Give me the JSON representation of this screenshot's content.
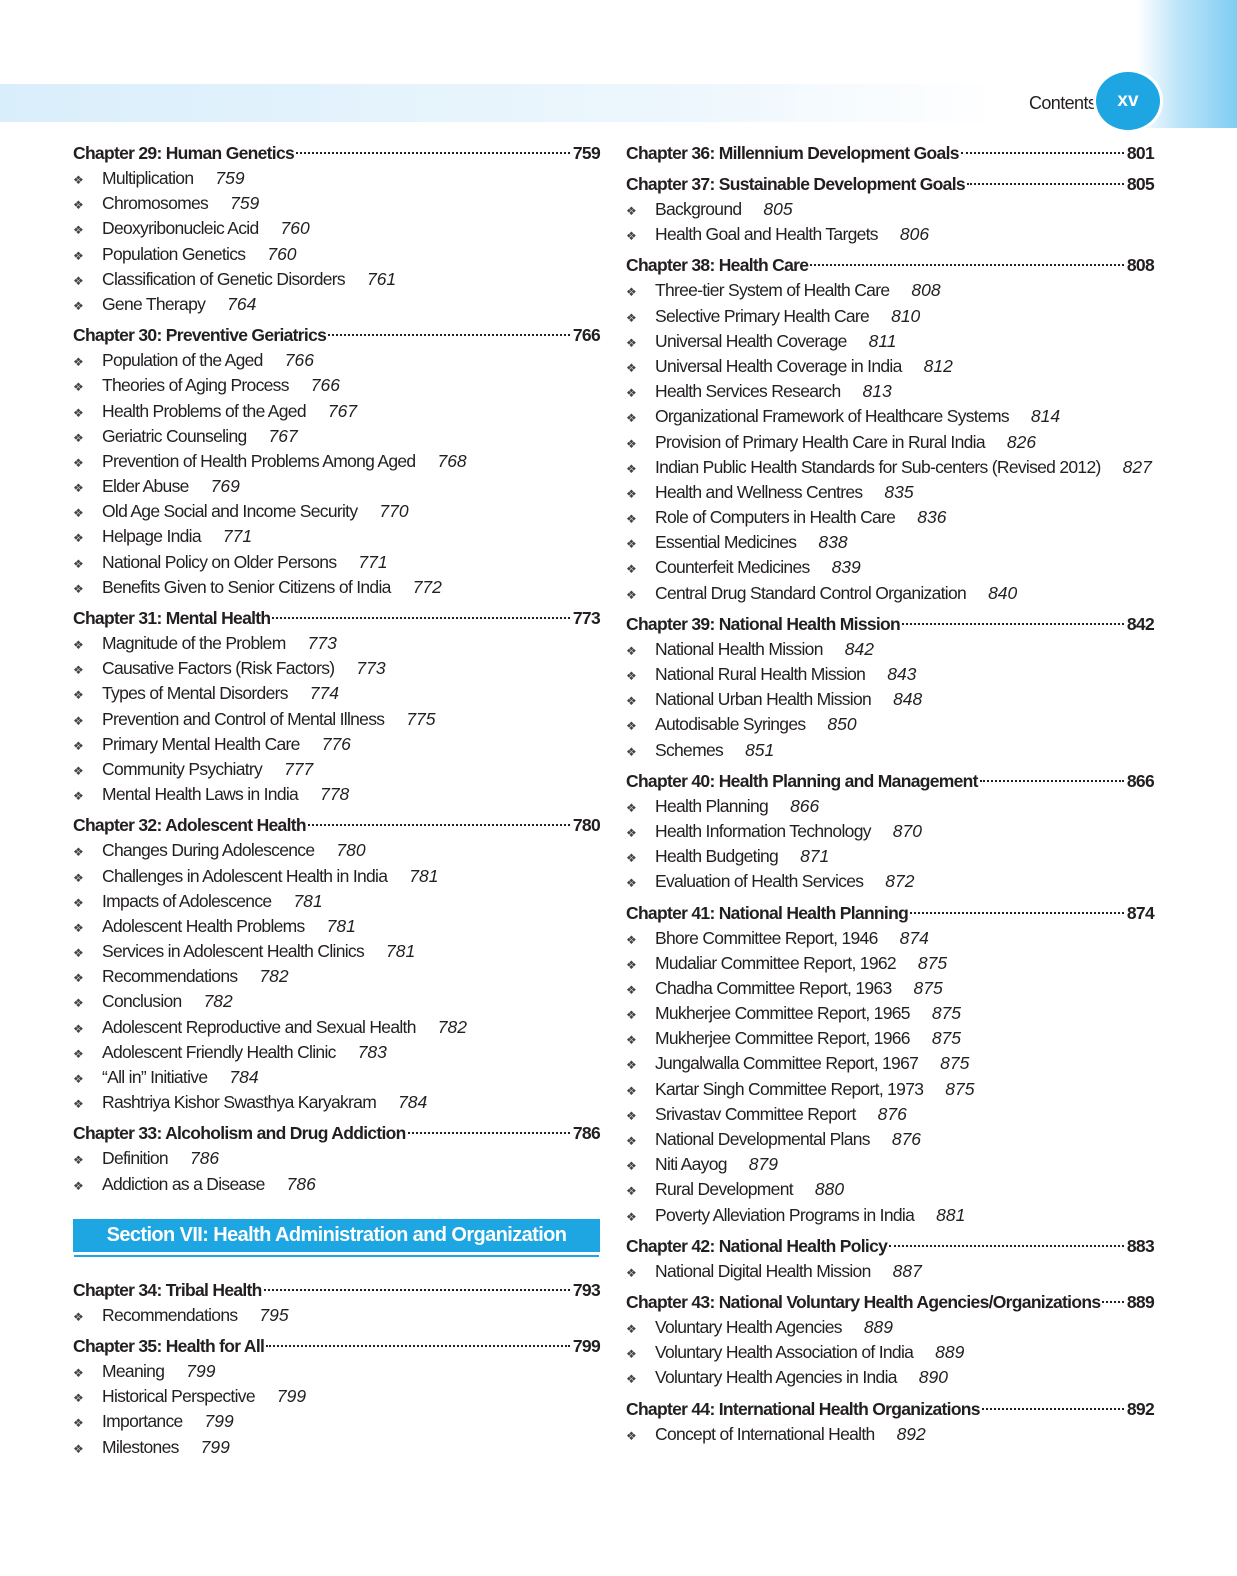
{
  "header": {
    "running_title": "Contents",
    "folio": "xv"
  },
  "accent_color": "#1da6e2",
  "columns": [
    [
      {
        "type": "chapter",
        "title": "Chapter 29: Human Genetics",
        "page": "759",
        "items": [
          {
            "label": "Multiplication",
            "page": "759"
          },
          {
            "label": "Chromosomes",
            "page": "759"
          },
          {
            "label": "Deoxyribonucleic Acid",
            "page": "760"
          },
          {
            "label": "Population Genetics",
            "page": "760"
          },
          {
            "label": "Classification of Genetic Disorders",
            "page": "761"
          },
          {
            "label": "Gene Therapy",
            "page": "764"
          }
        ]
      },
      {
        "type": "chapter",
        "title": "Chapter 30: Preventive Geriatrics",
        "page": "766",
        "items": [
          {
            "label": "Population of the Aged",
            "page": "766"
          },
          {
            "label": "Theories of Aging Process",
            "page": "766"
          },
          {
            "label": "Health Problems of the Aged",
            "page": "767"
          },
          {
            "label": "Geriatric Counseling",
            "page": "767"
          },
          {
            "label": "Prevention of Health Problems Among Aged",
            "page": "768"
          },
          {
            "label": "Elder Abuse",
            "page": "769"
          },
          {
            "label": "Old Age Social and Income Security",
            "page": "770"
          },
          {
            "label": "Helpage India",
            "page": "771"
          },
          {
            "label": "National Policy on Older Persons",
            "page": "771"
          },
          {
            "label": "Benefits Given to Senior Citizens of India",
            "page": "772"
          }
        ]
      },
      {
        "type": "chapter",
        "title": "Chapter 31: Mental Health",
        "page": "773",
        "items": [
          {
            "label": "Magnitude of the Problem",
            "page": "773"
          },
          {
            "label": "Causative Factors (Risk Factors)",
            "page": "773"
          },
          {
            "label": "Types of Mental Disorders",
            "page": "774"
          },
          {
            "label": "Prevention and Control of Mental Illness",
            "page": "775"
          },
          {
            "label": "Primary Mental Health Care",
            "page": "776"
          },
          {
            "label": "Community Psychiatry",
            "page": "777"
          },
          {
            "label": "Mental Health Laws in India",
            "page": "778"
          }
        ]
      },
      {
        "type": "chapter",
        "title": "Chapter 32: Adolescent Health",
        "page": "780",
        "items": [
          {
            "label": "Changes During Adolescence",
            "page": "780"
          },
          {
            "label": "Challenges in Adolescent Health in India",
            "page": "781"
          },
          {
            "label": "Impacts of Adolescence",
            "page": "781"
          },
          {
            "label": "Adolescent Health Problems",
            "page": "781"
          },
          {
            "label": "Services in Adolescent Health Clinics",
            "page": "781"
          },
          {
            "label": "Recommendations",
            "page": "782"
          },
          {
            "label": "Conclusion",
            "page": "782"
          },
          {
            "label": "Adolescent Reproductive and Sexual Health",
            "page": "782"
          },
          {
            "label": "Adolescent Friendly Health Clinic",
            "page": "783"
          },
          {
            "label": "“All in” Initiative",
            "page": "784"
          },
          {
            "label": "Rashtriya Kishor Swasthya Karyakram",
            "page": "784"
          }
        ]
      },
      {
        "type": "chapter",
        "title": "Chapter 33: Alcoholism and Drug Addiction",
        "page": "786",
        "items": [
          {
            "label": "Definition",
            "page": "786"
          },
          {
            "label": "Addiction as a Disease",
            "page": "786"
          }
        ]
      },
      {
        "type": "section",
        "title": "Section VII: Health Administration and Organization"
      },
      {
        "type": "chapter",
        "title": "Chapter 34: Tribal Health",
        "page": "793",
        "items": [
          {
            "label": "Recommendations",
            "page": "795"
          }
        ]
      },
      {
        "type": "chapter",
        "title": "Chapter 35: Health for All",
        "page": "799",
        "items": [
          {
            "label": "Meaning",
            "page": "799"
          },
          {
            "label": "Historical Perspective",
            "page": "799"
          },
          {
            "label": "Importance",
            "page": "799"
          },
          {
            "label": "Milestones",
            "page": "799"
          }
        ]
      }
    ],
    [
      {
        "type": "chapter",
        "title": "Chapter 36: Millennium Development Goals",
        "page": "801",
        "items": []
      },
      {
        "type": "chapter",
        "title": "Chapter 37: Sustainable Development Goals",
        "page": "805",
        "items": [
          {
            "label": "Background",
            "page": "805"
          },
          {
            "label": "Health Goal and Health Targets",
            "page": "806"
          }
        ]
      },
      {
        "type": "chapter",
        "title": "Chapter 38: Health Care",
        "page": "808",
        "items": [
          {
            "label": "Three-tier System of Health Care",
            "page": "808"
          },
          {
            "label": "Selective Primary Health Care",
            "page": "810"
          },
          {
            "label": "Universal Health Coverage",
            "page": "811"
          },
          {
            "label": "Universal Health Coverage in India",
            "page": "812"
          },
          {
            "label": "Health Services Research",
            "page": "813"
          },
          {
            "label": "Organizational Framework of Healthcare Systems",
            "page": "814"
          },
          {
            "label": "Provision of Primary Health Care in Rural India",
            "page": "826"
          },
          {
            "label": "Indian Public Health Standards for Sub-centers (Revised 2012)",
            "page": "827"
          },
          {
            "label": "Health and Wellness Centres",
            "page": "835"
          },
          {
            "label": "Role of Computers in Health Care",
            "page": "836"
          },
          {
            "label": "Essential Medicines",
            "page": "838"
          },
          {
            "label": "Counterfeit Medicines",
            "page": "839"
          },
          {
            "label": "Central Drug Standard Control Organization",
            "page": "840"
          }
        ]
      },
      {
        "type": "chapter",
        "title": "Chapter 39: National Health Mission",
        "page": "842",
        "items": [
          {
            "label": "National Health Mission",
            "page": "842"
          },
          {
            "label": "National Rural Health Mission",
            "page": "843"
          },
          {
            "label": "National Urban Health Mission",
            "page": "848"
          },
          {
            "label": "Autodisable Syringes",
            "page": "850"
          },
          {
            "label": "Schemes",
            "page": "851"
          }
        ]
      },
      {
        "type": "chapter",
        "title": "Chapter 40: Health Planning and Management",
        "page": "866",
        "items": [
          {
            "label": "Health Planning",
            "page": "866"
          },
          {
            "label": "Health Information Technology",
            "page": "870"
          },
          {
            "label": "Health Budgeting",
            "page": "871"
          },
          {
            "label": "Evaluation of Health Services",
            "page": "872"
          }
        ]
      },
      {
        "type": "chapter",
        "title": "Chapter 41: National Health Planning",
        "page": "874",
        "items": [
          {
            "label": "Bhore Committee Report, 1946",
            "page": "874"
          },
          {
            "label": "Mudaliar Committee Report, 1962",
            "page": "875"
          },
          {
            "label": "Chadha Committee Report, 1963",
            "page": "875"
          },
          {
            "label": "Mukherjee Committee Report, 1965",
            "page": "875"
          },
          {
            "label": "Mukherjee Committee Report, 1966",
            "page": "875"
          },
          {
            "label": "Jungalwalla Committee Report, 1967",
            "page": "875"
          },
          {
            "label": "Kartar Singh Committee Report, 1973",
            "page": "875"
          },
          {
            "label": "Srivastav Committee Report",
            "page": "876"
          },
          {
            "label": "National Developmental Plans",
            "page": "876"
          },
          {
            "label": "Niti Aayog",
            "page": "879"
          },
          {
            "label": "Rural Development",
            "page": "880"
          },
          {
            "label": "Poverty Alleviation Programs in India",
            "page": "881"
          }
        ]
      },
      {
        "type": "chapter",
        "title": "Chapter 42: National Health Policy",
        "page": "883",
        "items": [
          {
            "label": "National Digital Health Mission",
            "page": "887"
          }
        ]
      },
      {
        "type": "chapter",
        "title": "Chapter 43: National Voluntary Health Agencies/Organizations",
        "page": "889",
        "items": [
          {
            "label": "Voluntary Health Agencies",
            "page": "889"
          },
          {
            "label": "Voluntary Health Association of India",
            "page": "889"
          },
          {
            "label": "Voluntary Health Agencies in India",
            "page": "890"
          }
        ]
      },
      {
        "type": "chapter",
        "title": "Chapter 44: International Health Organizations",
        "page": "892",
        "items": [
          {
            "label": "Concept of International Health",
            "page": "892"
          }
        ]
      }
    ]
  ]
}
